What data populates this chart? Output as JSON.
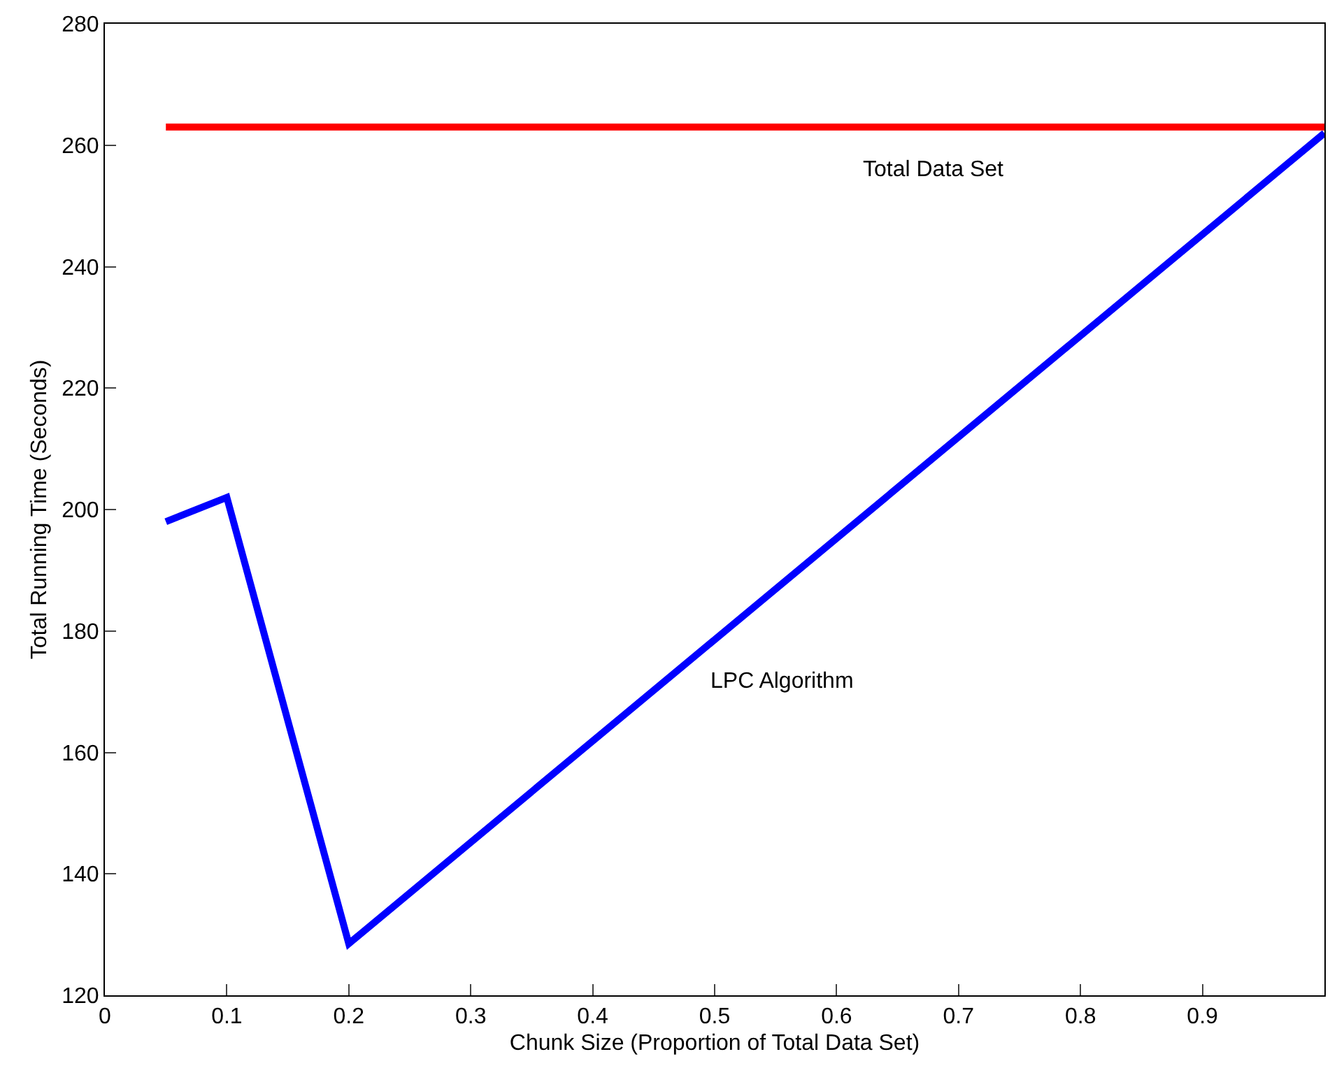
{
  "chart_data": {
    "type": "line",
    "xlabel": "Chunk Size (Proportion of Total Data Set)",
    "ylabel": "Total Running Time (Seconds)",
    "series": [
      {
        "name": "LPC Algorithm",
        "color": "#0000ff",
        "x": [
          0.05,
          0.1,
          0.2,
          1.0
        ],
        "values": [
          198,
          202,
          128.5,
          262
        ]
      },
      {
        "name": "Total Data Set",
        "color": "#ff0000",
        "x": [
          0.05,
          1.0
        ],
        "values": [
          263,
          263
        ]
      }
    ],
    "xlim": [
      0,
      1
    ],
    "xticks": [
      0,
      0.1,
      0.2,
      0.3,
      0.4,
      0.5,
      0.6,
      0.7,
      0.8,
      0.9
    ],
    "ylim": [
      120,
      280
    ],
    "yticks": [
      120,
      140,
      160,
      180,
      200,
      220,
      240,
      260,
      280
    ],
    "grid": false,
    "legend": false,
    "marker": "none",
    "line_style": "solid"
  }
}
